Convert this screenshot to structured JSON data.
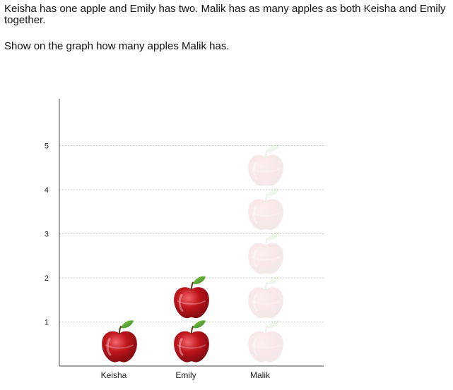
{
  "question": {
    "prompt": "Keisha has one apple and Emily has two. Malik has as many apples as both Keisha and Emily together.",
    "instruction": "Show on the graph how many apples Malik has."
  },
  "chart_data": {
    "type": "bar",
    "categories": [
      "Keisha",
      "Emily",
      "Malik"
    ],
    "values": [
      1,
      2,
      0
    ],
    "max_selectable": 5,
    "ylim": [
      0,
      5
    ],
    "y_ticks": [
      "1",
      "2",
      "3",
      "4",
      "5"
    ],
    "grid": true,
    "mark": "apple-icon"
  },
  "colors": {
    "apple": "#c0151c",
    "apple_highlight": "#e8474d",
    "leaf": "#4a9a2a",
    "grid": "#c8c8c8",
    "axis": "#444444"
  }
}
